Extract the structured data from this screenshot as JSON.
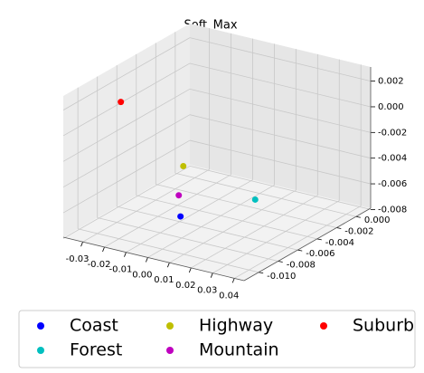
{
  "chart_data": {
    "type": "scatter3d",
    "title": "Soft_Max",
    "series": [
      {
        "name": "Coast",
        "color": "#0000ff",
        "x": [
          0.0012
        ],
        "y": [
          -0.0084
        ],
        "z": [
          -0.006
        ]
      },
      {
        "name": "Forest",
        "color": "#00bfbf",
        "x": [
          0.0159
        ],
        "y": [
          -0.004
        ],
        "z": [
          -0.006
        ]
      },
      {
        "name": "Highway",
        "color": "#bfbf00",
        "x": [
          -0.0119
        ],
        "y": [
          -0.0052
        ],
        "z": [
          -0.004
        ]
      },
      {
        "name": "Mountain",
        "color": "#bf00bf",
        "x": [
          -0.0041
        ],
        "y": [
          -0.0074
        ],
        "z": [
          -0.005
        ]
      },
      {
        "name": "Suburb",
        "color": "#ff0000",
        "x": [
          -0.0322
        ],
        "y": [
          -0.0071
        ],
        "z": [
          0.001
        ]
      }
    ],
    "xlim": [
      -0.039,
      0.0445
    ],
    "ylim": [
      -0.0115,
      0.0015
    ],
    "zlim": [
      -0.0079,
      0.0031
    ],
    "xticks": [
      {
        "value": -0.03,
        "label": "-0.03"
      },
      {
        "value": -0.02,
        "label": "-0.02"
      },
      {
        "value": -0.01,
        "label": "-0.01"
      },
      {
        "value": 0,
        "label": "0.00"
      },
      {
        "value": 0.01,
        "label": "0.01"
      },
      {
        "value": 0.02,
        "label": "0.02"
      },
      {
        "value": 0.03,
        "label": "0.03"
      },
      {
        "value": 0.04,
        "label": "0.04"
      }
    ],
    "yticks": [
      {
        "value": 0,
        "label": "0.000"
      },
      {
        "value": -0.002,
        "label": "-0.002"
      },
      {
        "value": -0.004,
        "label": "-0.004"
      },
      {
        "value": -0.006,
        "label": "-0.006"
      },
      {
        "value": -0.008,
        "label": "-0.008"
      },
      {
        "value": -0.01,
        "label": "-0.010"
      }
    ],
    "zticks": [
      {
        "value": 0.002,
        "label": "0.002"
      },
      {
        "value": 0,
        "label": "0.000"
      },
      {
        "value": -0.002,
        "label": "-0.002"
      },
      {
        "value": -0.004,
        "label": "-0.004"
      },
      {
        "value": -0.006,
        "label": "-0.006"
      },
      {
        "value": -0.008,
        "label": "-0.008"
      }
    ],
    "grid": true,
    "legend": "lower center"
  }
}
